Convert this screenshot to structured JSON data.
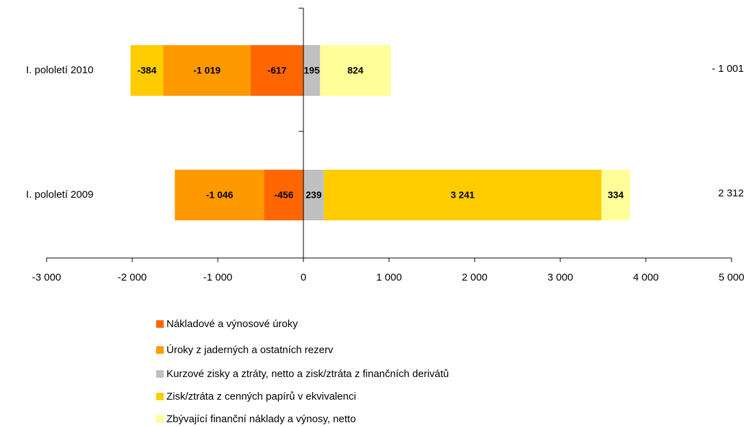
{
  "chart_data": {
    "type": "bar",
    "orientation": "horizontal",
    "stacked": true,
    "categories": [
      "I. pololetí 2010",
      "I. pololetí 2009"
    ],
    "series": [
      {
        "name": "Nákladové a výnosové úroky",
        "color": "#FF6600",
        "values": [
          -617,
          -456
        ],
        "value_labels": [
          "-617",
          "-456"
        ]
      },
      {
        "name": "Úroky z jaderných a ostatních rezerv",
        "color": "#FF9900",
        "values": [
          -1019,
          -1046
        ],
        "value_labels": [
          "-1 019",
          "-1 046"
        ]
      },
      {
        "name": "Kurzové zisky a ztráty, netto a zisk/ztráta z finančních derivátů",
        "color": "#C0C0C0",
        "values": [
          195,
          239
        ],
        "value_labels": [
          "195",
          "239"
        ]
      },
      {
        "name": "Zisk/ztráta z cenných papírů v ekvivalenci",
        "color": "#FFCC00",
        "values": [
          -384,
          3241
        ],
        "value_labels": [
          "-384",
          "3 241"
        ]
      },
      {
        "name": "Zbývající finanční náklady a výnosy, netto",
        "color": "#FFFF99",
        "values": [
          824,
          334
        ],
        "value_labels": [
          "824",
          "334"
        ]
      }
    ],
    "totals": [
      {
        "value": -1001,
        "label": "- 1 001"
      },
      {
        "value": 2312,
        "label": "2 312"
      }
    ],
    "xlim": [
      -3000,
      5000
    ],
    "xticks": [
      {
        "value": -3000,
        "label": "-3 000"
      },
      {
        "value": -2000,
        "label": "-2 000"
      },
      {
        "value": -1000,
        "label": "-1 000"
      },
      0,
      {
        "value": 1000,
        "label": "1 000"
      },
      {
        "value": 2000,
        "label": "2 000"
      },
      {
        "value": 3000,
        "label": "3 000"
      },
      {
        "value": 4000,
        "label": "4 000"
      },
      {
        "value": 5000,
        "label": "5 000"
      }
    ],
    "legend": "bottom"
  }
}
